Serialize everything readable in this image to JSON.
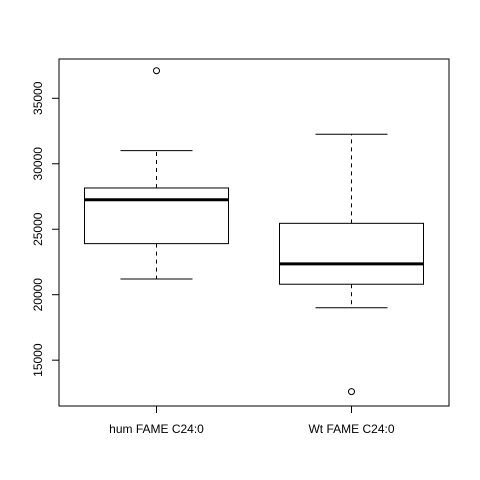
{
  "chart_data": {
    "type": "boxplot",
    "title": "",
    "xlabel": "",
    "ylabel": "",
    "ylim": [
      11500,
      38000
    ],
    "y_ticks": [
      15000,
      20000,
      25000,
      30000,
      35000
    ],
    "y_tick_labels": [
      "15000",
      "20000",
      "25000",
      "30000",
      "35000"
    ],
    "categories": [
      "hum FAME C24:0",
      "Wt FAME C24:0"
    ],
    "boxes": [
      {
        "category": "hum FAME C24:0",
        "whisker_low": 21200,
        "q1": 23900,
        "median": 27250,
        "q3": 28150,
        "whisker_high": 31000,
        "outliers": [
          37100
        ]
      },
      {
        "category": "Wt FAME C24:0",
        "whisker_low": 19000,
        "q1": 20800,
        "median": 22350,
        "q3": 25450,
        "whisker_high": 32250,
        "outliers": [
          12600
        ]
      }
    ],
    "grid": false,
    "legend": "none"
  }
}
